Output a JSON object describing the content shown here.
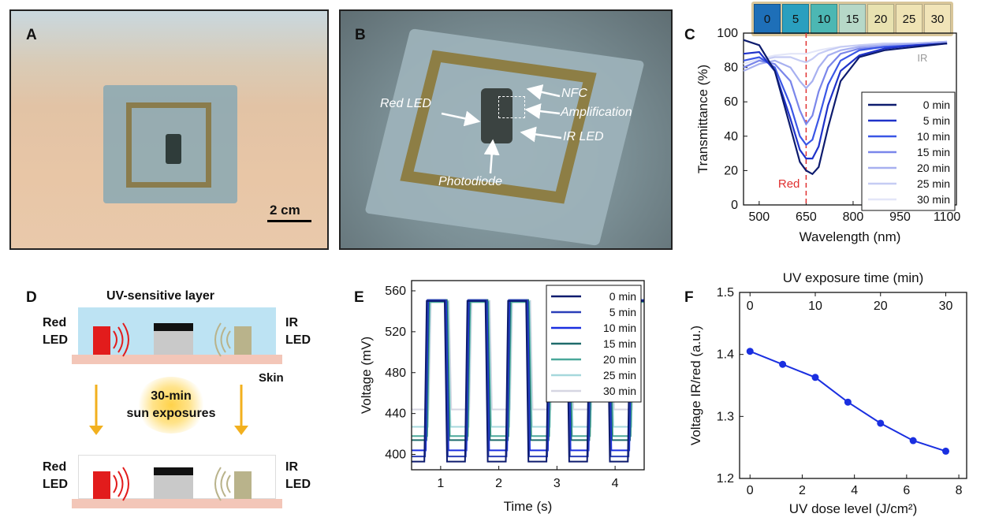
{
  "panels": {
    "A": {
      "letter": "A",
      "scale_label": "2 cm"
    },
    "B": {
      "letter": "B",
      "labels": {
        "nfc": "NFC",
        "red_led": "Red LED",
        "amplification": "Amplification",
        "ir_led": "IR LED",
        "photodiode": "Photodiode"
      }
    },
    "C": {
      "letter": "C",
      "swatches": [
        {
          "label": "0",
          "color": "#1e6fb8"
        },
        {
          "label": "5",
          "color": "#2a9fbf"
        },
        {
          "label": "10",
          "color": "#4cb7b3"
        },
        {
          "label": "15",
          "color": "#b6d8c8"
        },
        {
          "label": "20",
          "color": "#e8e2b0"
        },
        {
          "label": "25",
          "color": "#efe3b4"
        },
        {
          "label": "30",
          "color": "#f1e4b8"
        }
      ],
      "red_label": "Red",
      "ir_label": "IR"
    },
    "D": {
      "letter": "D",
      "layer_label": "UV-sensitive layer",
      "red_led": "Red\nLED",
      "ir_led": "IR\nLED",
      "skin_label": "Skin",
      "exposure_label": "30-min\nsun exposures"
    },
    "E": {
      "letter": "E"
    },
    "F": {
      "letter": "F"
    }
  },
  "chart_data": [
    {
      "id": "C",
      "type": "line",
      "xlabel": "Wavelength (nm)",
      "ylabel": "Transmittance (%)",
      "xlim": [
        450,
        1130
      ],
      "ylim": [
        0,
        100
      ],
      "xticks": [
        500,
        650,
        800,
        950,
        1100
      ],
      "yticks": [
        0,
        20,
        40,
        60,
        80,
        100
      ],
      "marker_line_x": 650,
      "legend_position": "right",
      "series": [
        {
          "name": "0 min",
          "color": "#0d1b6e",
          "x": [
            450,
            500,
            550,
            600,
            630,
            650,
            670,
            690,
            720,
            760,
            820,
            900,
            1000,
            1100
          ],
          "y": [
            96,
            93,
            78,
            45,
            25,
            20,
            18,
            22,
            45,
            72,
            86,
            90,
            92,
            94
          ]
        },
        {
          "name": "5 min",
          "color": "#1f32c9",
          "x": [
            450,
            500,
            550,
            600,
            630,
            650,
            670,
            690,
            720,
            760,
            820,
            900,
            1000,
            1100
          ],
          "y": [
            88,
            89,
            78,
            50,
            32,
            27,
            27,
            34,
            58,
            78,
            87,
            91,
            93,
            94
          ]
        },
        {
          "name": "10 min",
          "color": "#3a56e6",
          "x": [
            450,
            500,
            550,
            600,
            630,
            650,
            670,
            690,
            720,
            760,
            820,
            900,
            1000,
            1100
          ],
          "y": [
            84,
            86,
            80,
            58,
            40,
            35,
            38,
            50,
            70,
            84,
            90,
            92,
            93,
            94
          ]
        },
        {
          "name": "15 min",
          "color": "#7a86ea",
          "x": [
            450,
            500,
            550,
            600,
            630,
            650,
            670,
            690,
            720,
            760,
            820,
            900,
            1000,
            1100
          ],
          "y": [
            80,
            84,
            82,
            72,
            55,
            47,
            52,
            66,
            80,
            88,
            91,
            92,
            93,
            94
          ]
        },
        {
          "name": "20 min",
          "color": "#a7b0f0",
          "x": [
            450,
            500,
            550,
            600,
            630,
            650,
            670,
            690,
            720,
            760,
            820,
            900,
            1000,
            1100
          ],
          "y": [
            78,
            82,
            84,
            80,
            72,
            68,
            72,
            80,
            87,
            90,
            92,
            93,
            94,
            95
          ]
        },
        {
          "name": "25 min",
          "color": "#c6ccf4",
          "x": [
            450,
            500,
            550,
            600,
            630,
            650,
            670,
            690,
            720,
            760,
            820,
            900,
            1000,
            1100
          ],
          "y": [
            80,
            84,
            86,
            86,
            84,
            83,
            85,
            88,
            90,
            92,
            93,
            94,
            94,
            95
          ]
        },
        {
          "name": "30 min",
          "color": "#e3e6f8",
          "x": [
            450,
            500,
            550,
            600,
            630,
            650,
            670,
            690,
            720,
            760,
            820,
            900,
            1000,
            1100
          ],
          "y": [
            82,
            85,
            87,
            88,
            88,
            88,
            89,
            90,
            91,
            92,
            93,
            94,
            94,
            95
          ]
        }
      ]
    },
    {
      "id": "E",
      "type": "line",
      "xlabel": "Time (s)",
      "ylabel": "Voltage (mV)",
      "xlim": [
        0.5,
        4.5
      ],
      "ylim": [
        385,
        570
      ],
      "xticks": [
        1,
        2,
        3,
        4
      ],
      "yticks": [
        400,
        440,
        480,
        520,
        560
      ],
      "legend_position": "top-right",
      "period_s": 0.7,
      "high_fraction": 0.5,
      "first_rise_s": 0.72,
      "series": [
        {
          "name": "0 min",
          "color": "#0d1b6e",
          "high": 550,
          "low": 393
        },
        {
          "name": "5 min",
          "color": "#2a3fb8",
          "high": 551,
          "low": 398
        },
        {
          "name": "10 min",
          "color": "#1a2fe0",
          "high": 550,
          "low": 404
        },
        {
          "name": "15 min",
          "color": "#1f6b6b",
          "high": 551,
          "low": 414
        },
        {
          "name": "20 min",
          "color": "#4aa89a",
          "high": 549,
          "low": 418
        },
        {
          "name": "25 min",
          "color": "#a6d8dc",
          "high": 550,
          "low": 427
        },
        {
          "name": "30 min",
          "color": "#d6d6e2",
          "high": 550,
          "low": 444
        }
      ]
    },
    {
      "id": "F",
      "type": "line",
      "xlabel": "UV dose level (J/cm²)",
      "ylabel": "Voltage IR/red (a.u.)",
      "top_xlabel": "UV exposure time (min)",
      "xlim": [
        -0.4,
        8.3
      ],
      "ylim": [
        1.2,
        1.5
      ],
      "xticks": [
        0,
        2,
        4,
        6,
        8
      ],
      "top_xticks": [
        0,
        10,
        20,
        30
      ],
      "top_xtick_positions": [
        0,
        2.5,
        5,
        7.5
      ],
      "yticks": [
        1.2,
        1.3,
        1.4,
        1.5
      ],
      "series": [
        {
          "color": "#1a2fe0",
          "x": [
            0,
            1.25,
            2.5,
            3.75,
            5.0,
            6.25,
            7.5
          ],
          "y": [
            1.405,
            1.384,
            1.363,
            1.323,
            1.289,
            1.261,
            1.244
          ]
        }
      ]
    }
  ]
}
